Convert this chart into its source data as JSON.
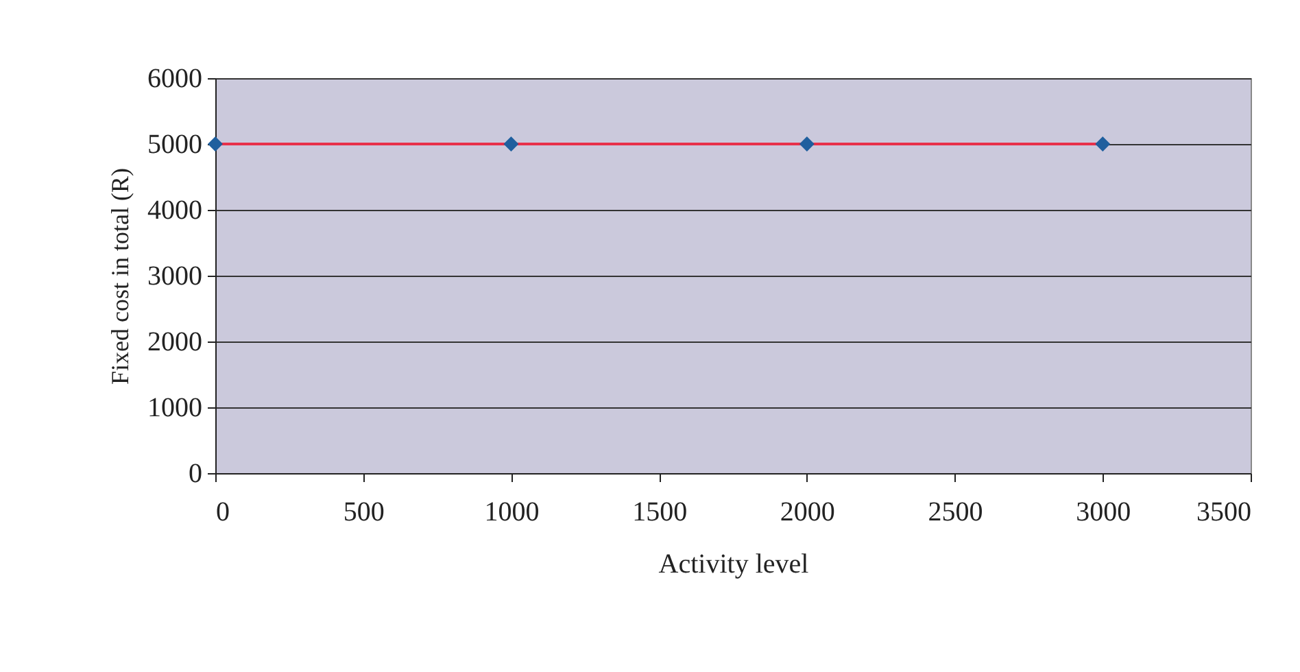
{
  "chart_data": {
    "type": "line",
    "xlabel": "Activity level",
    "ylabel": "Fixed cost in total (R)",
    "xlim": [
      0,
      3500
    ],
    "xticks": [
      0,
      500,
      1000,
      1500,
      2000,
      2500,
      3000,
      3500
    ],
    "ylim": [
      0,
      6000
    ],
    "yticks": [
      0,
      1000,
      2000,
      3000,
      4000,
      5000,
      6000
    ],
    "grid": "y",
    "x": [
      0,
      1000,
      2000,
      3000
    ],
    "series": [
      {
        "type": "line",
        "color": "#e8304a",
        "marker": "none",
        "values": [
          5000,
          5000,
          5000,
          5000
        ]
      },
      {
        "type": "scatter",
        "color": "#1f5f9e",
        "marker": "diamond",
        "values": [
          5000,
          5000,
          5000,
          5000
        ]
      }
    ]
  }
}
